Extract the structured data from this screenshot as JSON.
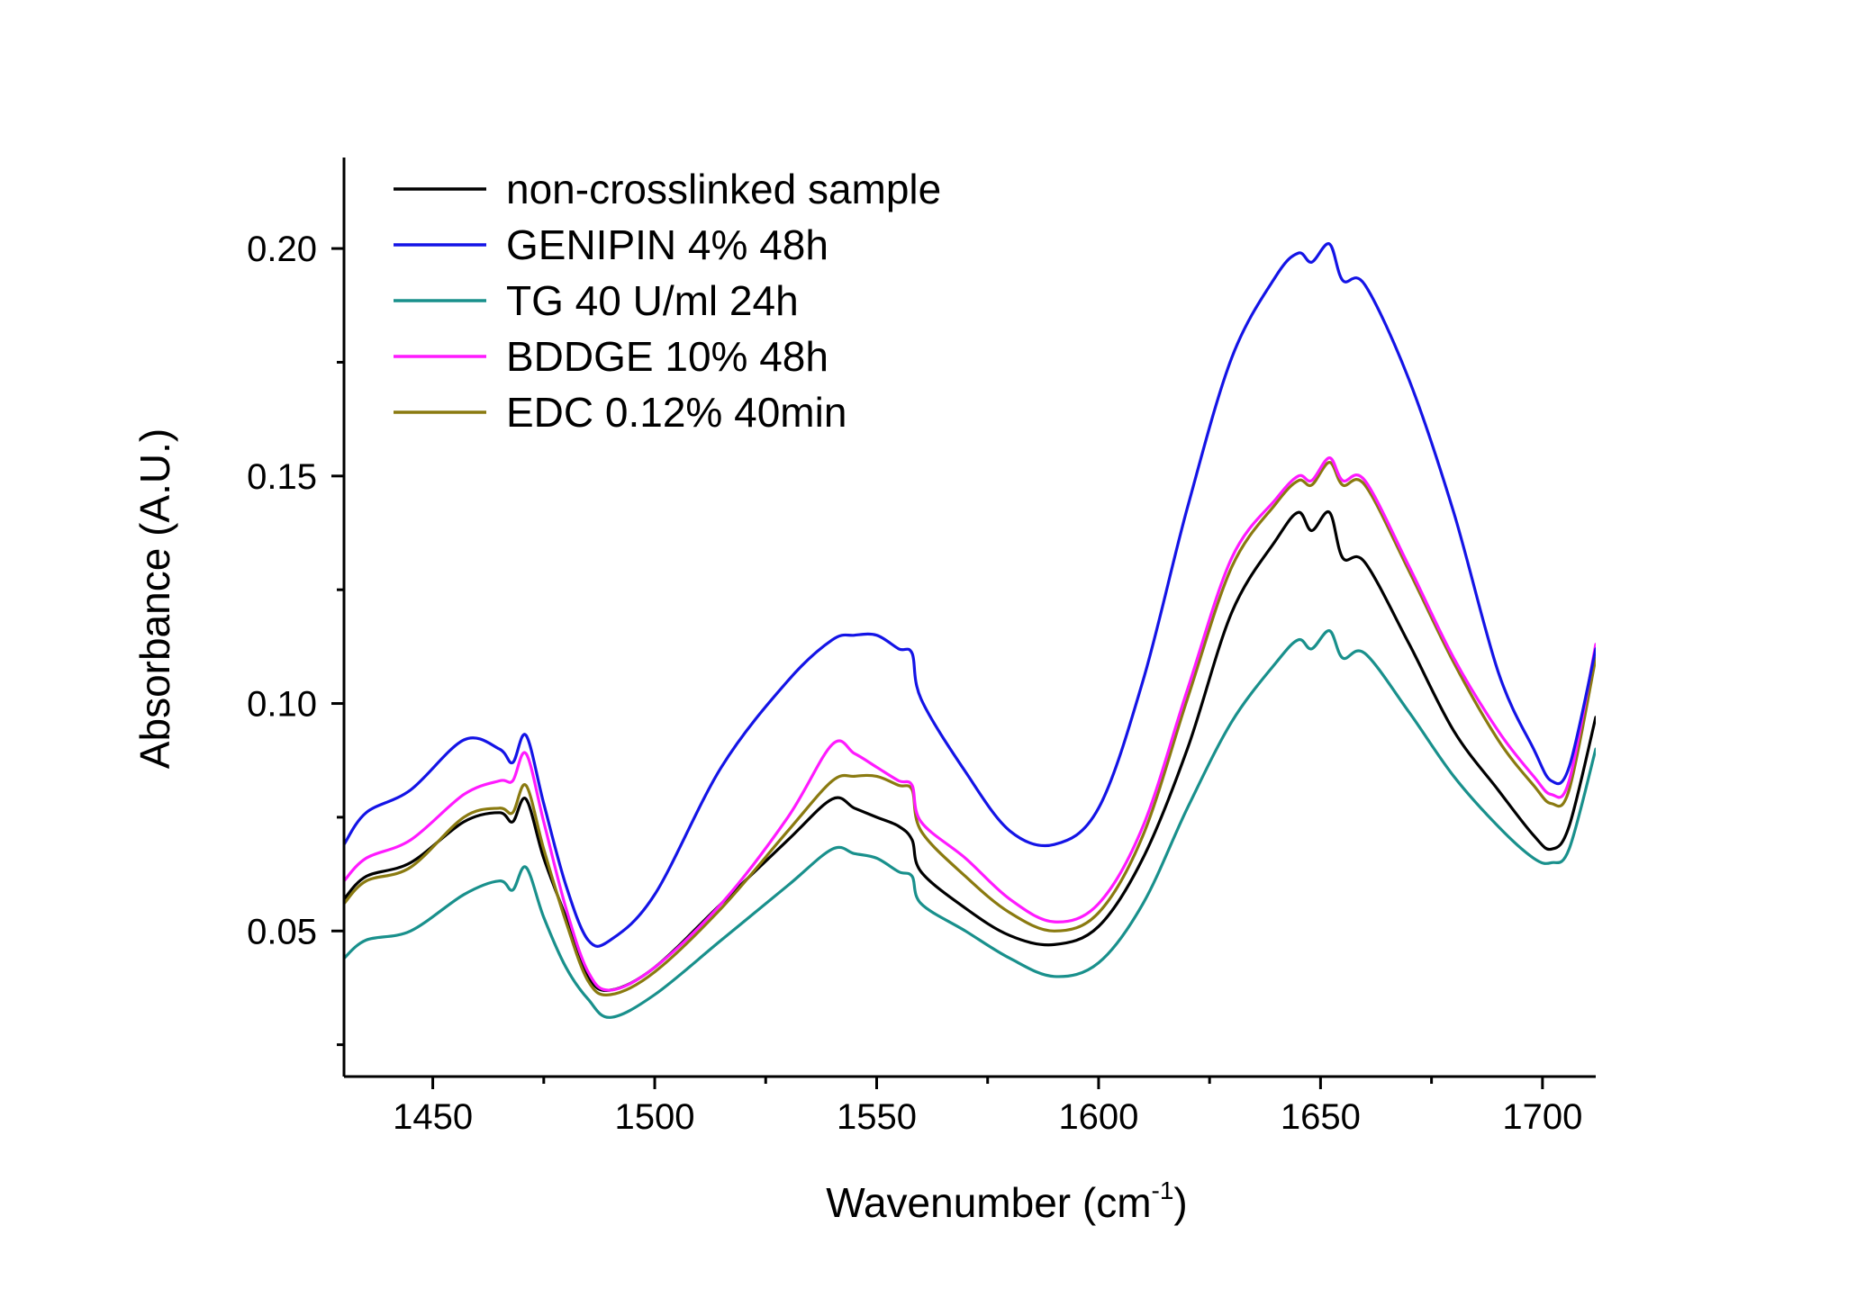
{
  "chart_data": {
    "type": "line",
    "xlabel": "Wavenumber (cm",
    "xlabel_sup": "-1",
    "xlabel_tail": ")",
    "ylabel": "Absorbance (A.U.)",
    "xlim": [
      1430,
      1712
    ],
    "ylim": [
      0.018,
      0.22
    ],
    "x_ticks": [
      1450,
      1500,
      1550,
      1600,
      1650,
      1700
    ],
    "x_tick_labels": [
      "1450",
      "1500",
      "1550",
      "1600",
      "1650",
      "1700"
    ],
    "x_minor_ticks": [
      1475,
      1525,
      1575,
      1625,
      1675
    ],
    "y_ticks": [
      0.05,
      0.1,
      0.15,
      0.2
    ],
    "y_tick_labels": [
      "0.05",
      "0.10",
      "0.15",
      "0.20"
    ],
    "y_minor_ticks": [
      0.025,
      0.075,
      0.125,
      0.175
    ],
    "legend_position": "top-left",
    "x": [
      1430,
      1435,
      1445,
      1457,
      1465,
      1468,
      1471,
      1475,
      1480,
      1485,
      1490,
      1500,
      1515,
      1530,
      1540,
      1545,
      1550,
      1555,
      1558,
      1560,
      1570,
      1580,
      1590,
      1600,
      1610,
      1620,
      1630,
      1640,
      1645,
      1648,
      1652,
      1655,
      1660,
      1670,
      1680,
      1690,
      1698,
      1702,
      1706,
      1712
    ],
    "series": [
      {
        "name": "non-crosslinked sample",
        "color": "#000000",
        "values": [
          0.057,
          0.062,
          0.065,
          0.074,
          0.076,
          0.074,
          0.079,
          0.066,
          0.053,
          0.04,
          0.037,
          0.042,
          0.056,
          0.07,
          0.079,
          0.077,
          0.075,
          0.073,
          0.07,
          0.063,
          0.055,
          0.049,
          0.047,
          0.051,
          0.066,
          0.09,
          0.12,
          0.136,
          0.142,
          0.138,
          0.142,
          0.132,
          0.131,
          0.113,
          0.094,
          0.081,
          0.071,
          0.068,
          0.073,
          0.097
        ]
      },
      {
        "name": "GENIPIN 4% 48h",
        "color": "#1414e6",
        "values": [
          0.069,
          0.076,
          0.081,
          0.092,
          0.09,
          0.087,
          0.093,
          0.078,
          0.06,
          0.048,
          0.048,
          0.058,
          0.086,
          0.105,
          0.114,
          0.115,
          0.115,
          0.112,
          0.111,
          0.101,
          0.085,
          0.072,
          0.069,
          0.077,
          0.105,
          0.143,
          0.176,
          0.194,
          0.199,
          0.197,
          0.201,
          0.193,
          0.192,
          0.171,
          0.142,
          0.107,
          0.09,
          0.083,
          0.086,
          0.112
        ]
      },
      {
        "name": "TG 40 U/ml 24h",
        "color": "#19908c",
        "values": [
          0.044,
          0.048,
          0.05,
          0.058,
          0.061,
          0.059,
          0.064,
          0.053,
          0.042,
          0.035,
          0.031,
          0.036,
          0.048,
          0.06,
          0.068,
          0.067,
          0.066,
          0.063,
          0.062,
          0.056,
          0.05,
          0.044,
          0.04,
          0.043,
          0.056,
          0.077,
          0.096,
          0.109,
          0.114,
          0.112,
          0.116,
          0.11,
          0.111,
          0.098,
          0.084,
          0.073,
          0.066,
          0.065,
          0.068,
          0.09
        ]
      },
      {
        "name": "BDDGE 10% 48h",
        "color": "#ff1aff",
        "values": [
          0.061,
          0.066,
          0.07,
          0.08,
          0.083,
          0.083,
          0.089,
          0.074,
          0.055,
          0.041,
          0.037,
          0.042,
          0.056,
          0.075,
          0.091,
          0.089,
          0.086,
          0.083,
          0.082,
          0.074,
          0.066,
          0.057,
          0.052,
          0.056,
          0.073,
          0.103,
          0.132,
          0.145,
          0.15,
          0.149,
          0.154,
          0.149,
          0.149,
          0.13,
          0.11,
          0.094,
          0.084,
          0.08,
          0.083,
          0.113
        ]
      },
      {
        "name": "EDC 0.12% 40min",
        "color": "#8a7a10",
        "values": [
          0.056,
          0.061,
          0.064,
          0.075,
          0.077,
          0.076,
          0.082,
          0.068,
          0.052,
          0.039,
          0.036,
          0.041,
          0.055,
          0.072,
          0.083,
          0.084,
          0.084,
          0.082,
          0.081,
          0.072,
          0.062,
          0.054,
          0.05,
          0.054,
          0.071,
          0.101,
          0.13,
          0.144,
          0.149,
          0.148,
          0.153,
          0.148,
          0.148,
          0.129,
          0.109,
          0.092,
          0.082,
          0.078,
          0.081,
          0.11
        ]
      }
    ]
  }
}
